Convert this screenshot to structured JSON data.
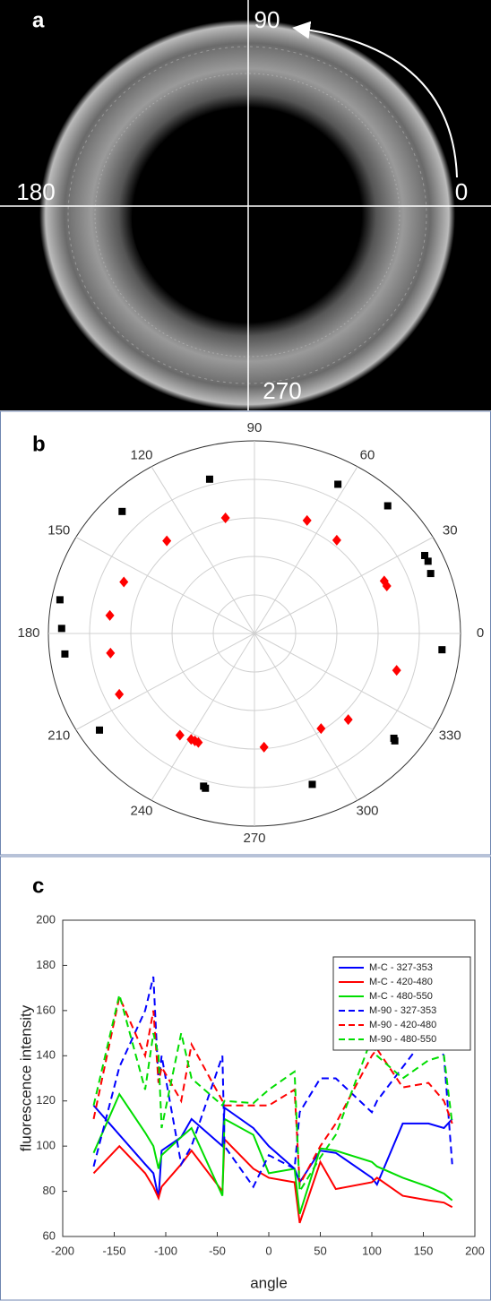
{
  "image_panel": {
    "label": "a",
    "angle_labels": [
      "90",
      "0",
      "180",
      "270"
    ]
  },
  "chart_data": [
    {
      "type": "polar_scatter",
      "label": "b",
      "rlim": [
        0,
        5
      ],
      "rticks": [
        1,
        2,
        3,
        4,
        5
      ],
      "thetaticks": [
        0,
        30,
        60,
        90,
        120,
        150,
        180,
        210,
        240,
        270,
        300,
        330
      ],
      "series": [
        {
          "color": "#000000",
          "marker": "square",
          "theta": [
            105.2,
            62.4,
            45.7,
            26.1,
            24,
            20,
            135.4,
            169.5,
            178.4,
            186.6,
            354.7,
            213.7,
            252.7,
            253.5,
            289.7,
            321.2,
            320.7
          ],
          "r": [
            4.15,
            4.37,
            4.63,
            4.6,
            4.61,
            4.55,
            4.51,
            4.8,
            4.68,
            4.63,
            4.57,
            4.52,
            4.15,
            4.19,
            4.16,
            4.34,
            4.4
          ]
        },
        {
          "color": "#ff0000",
          "marker": "diamond",
          "theta": [
            103.2,
            66.5,
            50.5,
            23.4,
            21,
            131.5,
            157.1,
            172.4,
            188.3,
            205.7,
            344.5,
            315.5,
            303.2,
            235.6,
            240.8,
            242.6,
            244.3,
            274.5
          ],
          "r": [
            3.08,
            3.2,
            3.14,
            3.43,
            3.44,
            3.21,
            3.44,
            3.54,
            3.53,
            3.64,
            3.58,
            3.19,
            2.95,
            3.2,
            3.15,
            3.14,
            3.14,
            2.96
          ]
        }
      ]
    },
    {
      "type": "line",
      "label": "c",
      "xlabel": "angle",
      "ylabel": "fluorescence intensity",
      "xlim": [
        -200,
        200
      ],
      "xticks": [
        -200,
        -150,
        -100,
        -50,
        0,
        50,
        100,
        150,
        200
      ],
      "ylim": [
        60,
        200
      ],
      "yticks": [
        60,
        80,
        100,
        120,
        140,
        160,
        180,
        200
      ],
      "legend": "upper right",
      "x": [
        -170,
        -145,
        -120,
        -112,
        -107,
        -104,
        -85,
        -75,
        -45,
        -43,
        -15,
        0,
        25,
        30,
        50,
        65,
        100,
        105,
        130,
        155,
        170,
        178
      ],
      "series": [
        {
          "name": "M-C - 327-353",
          "color": "#0000ff",
          "dashed": false,
          "values": [
            118,
            105,
            92,
            88,
            77,
            98,
            104,
            112,
            100,
            117,
            108,
            100,
            90,
            84,
            98,
            97,
            86,
            83,
            110,
            110,
            108,
            112
          ]
        },
        {
          "name": "M-C - 420-480",
          "color": "#ff0000",
          "dashed": false,
          "values": [
            88,
            100,
            88,
            82,
            77,
            82,
            92,
            98,
            80,
            103,
            90,
            86,
            84,
            66,
            93,
            81,
            84,
            86,
            78,
            76,
            75,
            73
          ]
        },
        {
          "name": "M-C - 480-550",
          "color": "#00dd00",
          "dashed": false,
          "values": [
            97,
            123,
            106,
            100,
            90,
            96,
            104,
            108,
            78,
            112,
            105,
            88,
            90,
            70,
            99,
            98,
            93,
            91,
            86,
            82,
            79,
            76
          ]
        },
        {
          "name": "M-90 - 327-353",
          "color": "#0000ff",
          "dashed": true,
          "values": [
            91,
            135,
            160,
            175,
            128,
            140,
            92,
            100,
            140,
            100,
            82,
            96,
            90,
            115,
            130,
            130,
            115,
            120,
            135,
            150,
            140,
            92
          ]
        },
        {
          "name": "M-90 - 420-480",
          "color": "#ff0000",
          "dashed": true,
          "values": [
            112,
            166,
            140,
            160,
            128,
            135,
            120,
            145,
            120,
            118,
            118,
            118,
            125,
            83,
            100,
            110,
            140,
            143,
            126,
            128,
            120,
            110
          ]
        },
        {
          "name": "M-90 - 480-550",
          "color": "#00dd00",
          "dashed": true,
          "values": [
            118,
            167,
            125,
            150,
            140,
            108,
            150,
            130,
            118,
            120,
            119,
            125,
            133,
            80,
            95,
            105,
            148,
            140,
            130,
            138,
            140,
            110
          ]
        }
      ]
    }
  ]
}
